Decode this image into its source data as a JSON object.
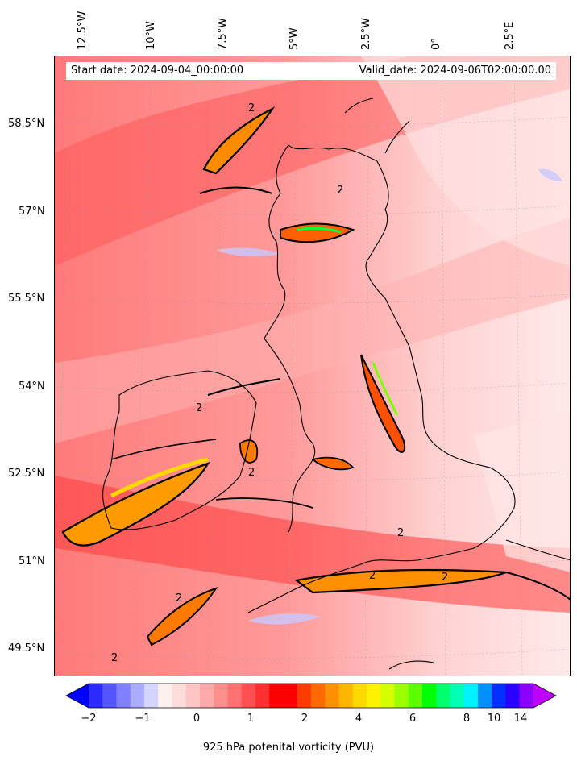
{
  "header": {
    "start_date": "Start date: 2024-09-04_00:00:00",
    "valid_date": "Valid_date: 2024-09-06T02:00:00.00"
  },
  "axes": {
    "lon_labels": [
      "12.5°W",
      "10°W",
      "7.5°W",
      "5°W",
      "2.5°W",
      "0°",
      "2.5°E"
    ],
    "lat_labels": [
      "58.5°N",
      "57°N",
      "55.5°N",
      "54°N",
      "52.5°N",
      "51°N",
      "49.5°N"
    ]
  },
  "contour_label": "2",
  "colorbar": {
    "label": "925 hPa potenital vorticity (PVU)",
    "ticks": [
      "−2",
      "−1",
      "0",
      "1",
      "2",
      "4",
      "6",
      "8",
      "10",
      "14"
    ],
    "colors": [
      "#0000ff",
      "#2b2bff",
      "#5555ff",
      "#7f7fff",
      "#aaaaff",
      "#d4d4ff",
      "#fff0f0",
      "#ffdcdc",
      "#ffc4c4",
      "#ffaaaa",
      "#ff8e8e",
      "#ff7070",
      "#ff5050",
      "#ff3030",
      "#ff0000",
      "#ff0000",
      "#ff3c00",
      "#ff6a00",
      "#ff9000",
      "#ffb400",
      "#ffd800",
      "#fff200",
      "#d4ff00",
      "#9cff00",
      "#5cff00",
      "#00ff00",
      "#00ff6a",
      "#00ffb4",
      "#00f0ff",
      "#0090ff",
      "#0030ff",
      "#2a00ff",
      "#8c00ff",
      "#c000ff"
    ]
  }
}
